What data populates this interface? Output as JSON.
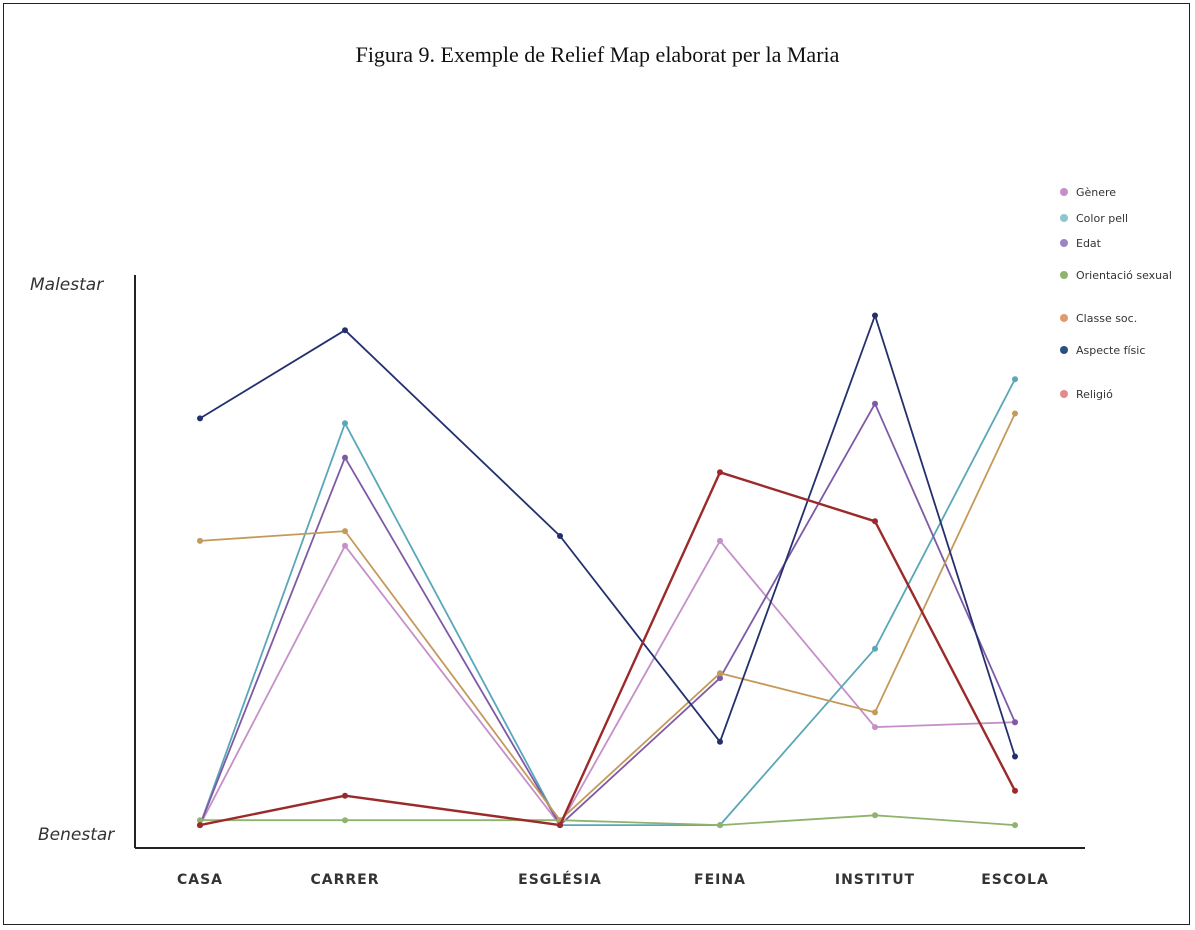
{
  "title": "Figura 9. Exemple de Relief Map elaborat per la Maria",
  "chart_data": {
    "type": "line",
    "categories": [
      "CASA",
      "CARRER",
      "ESGLÉSIA",
      "FEINA",
      "INSTITUT",
      "ESCOLA"
    ],
    "y_top_label": "Malestar",
    "y_bottom_label": "Benestar",
    "ylim": [
      0,
      100
    ],
    "grid": false,
    "legend_position": "top-right",
    "series": [
      {
        "name": "Gènere",
        "color": "#c590c8",
        "values": [
          1,
          58,
          1,
          59,
          21,
          22
        ]
      },
      {
        "name": "Color pell",
        "color": "#5aa7b8",
        "values": [
          1,
          83,
          1,
          1,
          37,
          92
        ]
      },
      {
        "name": "Edat",
        "color": "#7e5aa6",
        "values": [
          1,
          76,
          1,
          31,
          87,
          22
        ]
      },
      {
        "name": "Orientació sexual",
        "color": "#8fb26c",
        "values": [
          2,
          2,
          2,
          1,
          3,
          1
        ]
      },
      {
        "name": "Classe soc.",
        "color": "#c49a5a",
        "values": [
          59,
          61,
          2,
          32,
          24,
          85
        ]
      },
      {
        "name": "Aspecte físic",
        "color": "#24306e",
        "values": [
          84,
          102,
          60,
          18,
          105,
          15
        ]
      },
      {
        "name": "Religió",
        "color": "#9b2a2a",
        "values": [
          1,
          7,
          1,
          73,
          63,
          8
        ]
      }
    ]
  },
  "legend": {
    "items": [
      {
        "label": "Gènere",
        "color": "#c590c8"
      },
      {
        "label": "Color pell",
        "color": "#8cc6d0"
      },
      {
        "label": "Edat",
        "color": "#9a86c4"
      },
      {
        "label": "Orientació sexual",
        "color": "#8fb26c"
      },
      {
        "label": "Classe soc.",
        "color": "#e09a70"
      },
      {
        "label": "Aspecte físic",
        "color": "#2b4f7e"
      },
      {
        "label": "Religió",
        "color": "#e08a8a"
      }
    ]
  }
}
